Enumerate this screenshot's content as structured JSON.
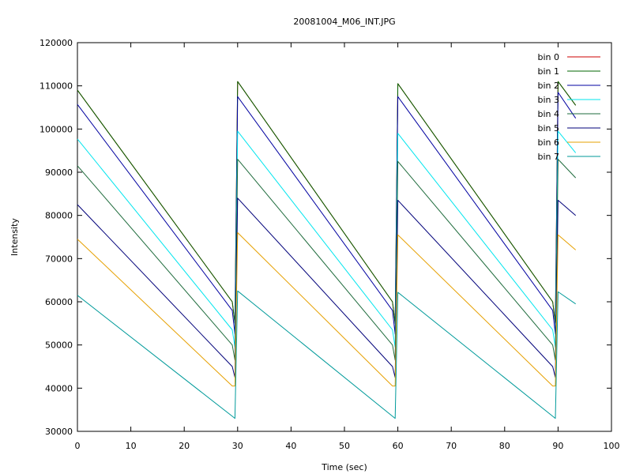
{
  "chart_data": {
    "type": "line",
    "title": "20081004_M06_INT.JPG",
    "xlabel": "Time (sec)",
    "ylabel": "Intensity",
    "xlim": [
      0,
      100
    ],
    "ylim": [
      30000,
      120000
    ],
    "xticks": [
      0,
      10,
      20,
      30,
      40,
      50,
      60,
      70,
      80,
      90,
      100
    ],
    "yticks": [
      30000,
      40000,
      50000,
      60000,
      70000,
      80000,
      90000,
      100000,
      110000,
      120000
    ],
    "grid": false,
    "legend_position": "top-right",
    "series": [
      {
        "name": "bin 0",
        "color": "#cc0000",
        "x": [
          0,
          29,
          29.5,
          30,
          59,
          59.5,
          60,
          89,
          89.5,
          90,
          93.3
        ],
        "y": [
          109000,
          60000,
          55000,
          111000,
          60000,
          55000,
          110500,
          60000,
          55000,
          111000,
          105500
        ]
      },
      {
        "name": "bin 1",
        "color": "#006400",
        "x": [
          0,
          29,
          29.5,
          30,
          59,
          59.5,
          60,
          89,
          89.5,
          90,
          93.3
        ],
        "y": [
          109000,
          60000,
          55000,
          111000,
          60000,
          55000,
          110500,
          60000,
          55000,
          111000,
          105500
        ]
      },
      {
        "name": "bin 2",
        "color": "#0000a0",
        "x": [
          0,
          29,
          29.5,
          30,
          59,
          59.5,
          60,
          89,
          89.5,
          90,
          93.3
        ],
        "y": [
          105700,
          58000,
          52500,
          107500,
          58000,
          52500,
          107500,
          58000,
          52500,
          108500,
          102500
        ]
      },
      {
        "name": "bin 3",
        "color": "#00e5ee",
        "x": [
          0,
          29,
          29.5,
          30,
          59,
          59.5,
          60,
          89,
          89.5,
          90,
          93.3
        ],
        "y": [
          97700,
          53500,
          49500,
          99500,
          53500,
          49500,
          99000,
          53500,
          49500,
          99500,
          94500
        ]
      },
      {
        "name": "bin 4",
        "color": "#1e6b3c",
        "x": [
          0,
          29,
          29.5,
          30,
          59,
          59.5,
          60,
          89,
          89.5,
          90,
          93.3
        ],
        "y": [
          91500,
          50000,
          46500,
          93000,
          50000,
          46500,
          92500,
          50000,
          46500,
          93000,
          88700
        ]
      },
      {
        "name": "bin 5",
        "color": "#00007a",
        "x": [
          0,
          29,
          29.5,
          30,
          59,
          59.5,
          60,
          89,
          89.5,
          90,
          93.3
        ],
        "y": [
          82500,
          45000,
          42500,
          84000,
          45000,
          42500,
          83500,
          45000,
          42500,
          83500,
          80000
        ]
      },
      {
        "name": "bin 6",
        "color": "#e6a000",
        "x": [
          0,
          29,
          29.5,
          30,
          59,
          59.5,
          60,
          89,
          89.5,
          90,
          93.3
        ],
        "y": [
          74500,
          40500,
          40500,
          76000,
          40500,
          40500,
          75500,
          40500,
          40500,
          75500,
          72000
        ]
      },
      {
        "name": "bin 7",
        "color": "#009a9a",
        "x": [
          0,
          29,
          29.5,
          30,
          59,
          59.5,
          60,
          89,
          89.5,
          90,
          93.3
        ],
        "y": [
          61500,
          33500,
          33000,
          62500,
          33500,
          33000,
          62200,
          33500,
          33000,
          62300,
          59500
        ]
      }
    ]
  }
}
